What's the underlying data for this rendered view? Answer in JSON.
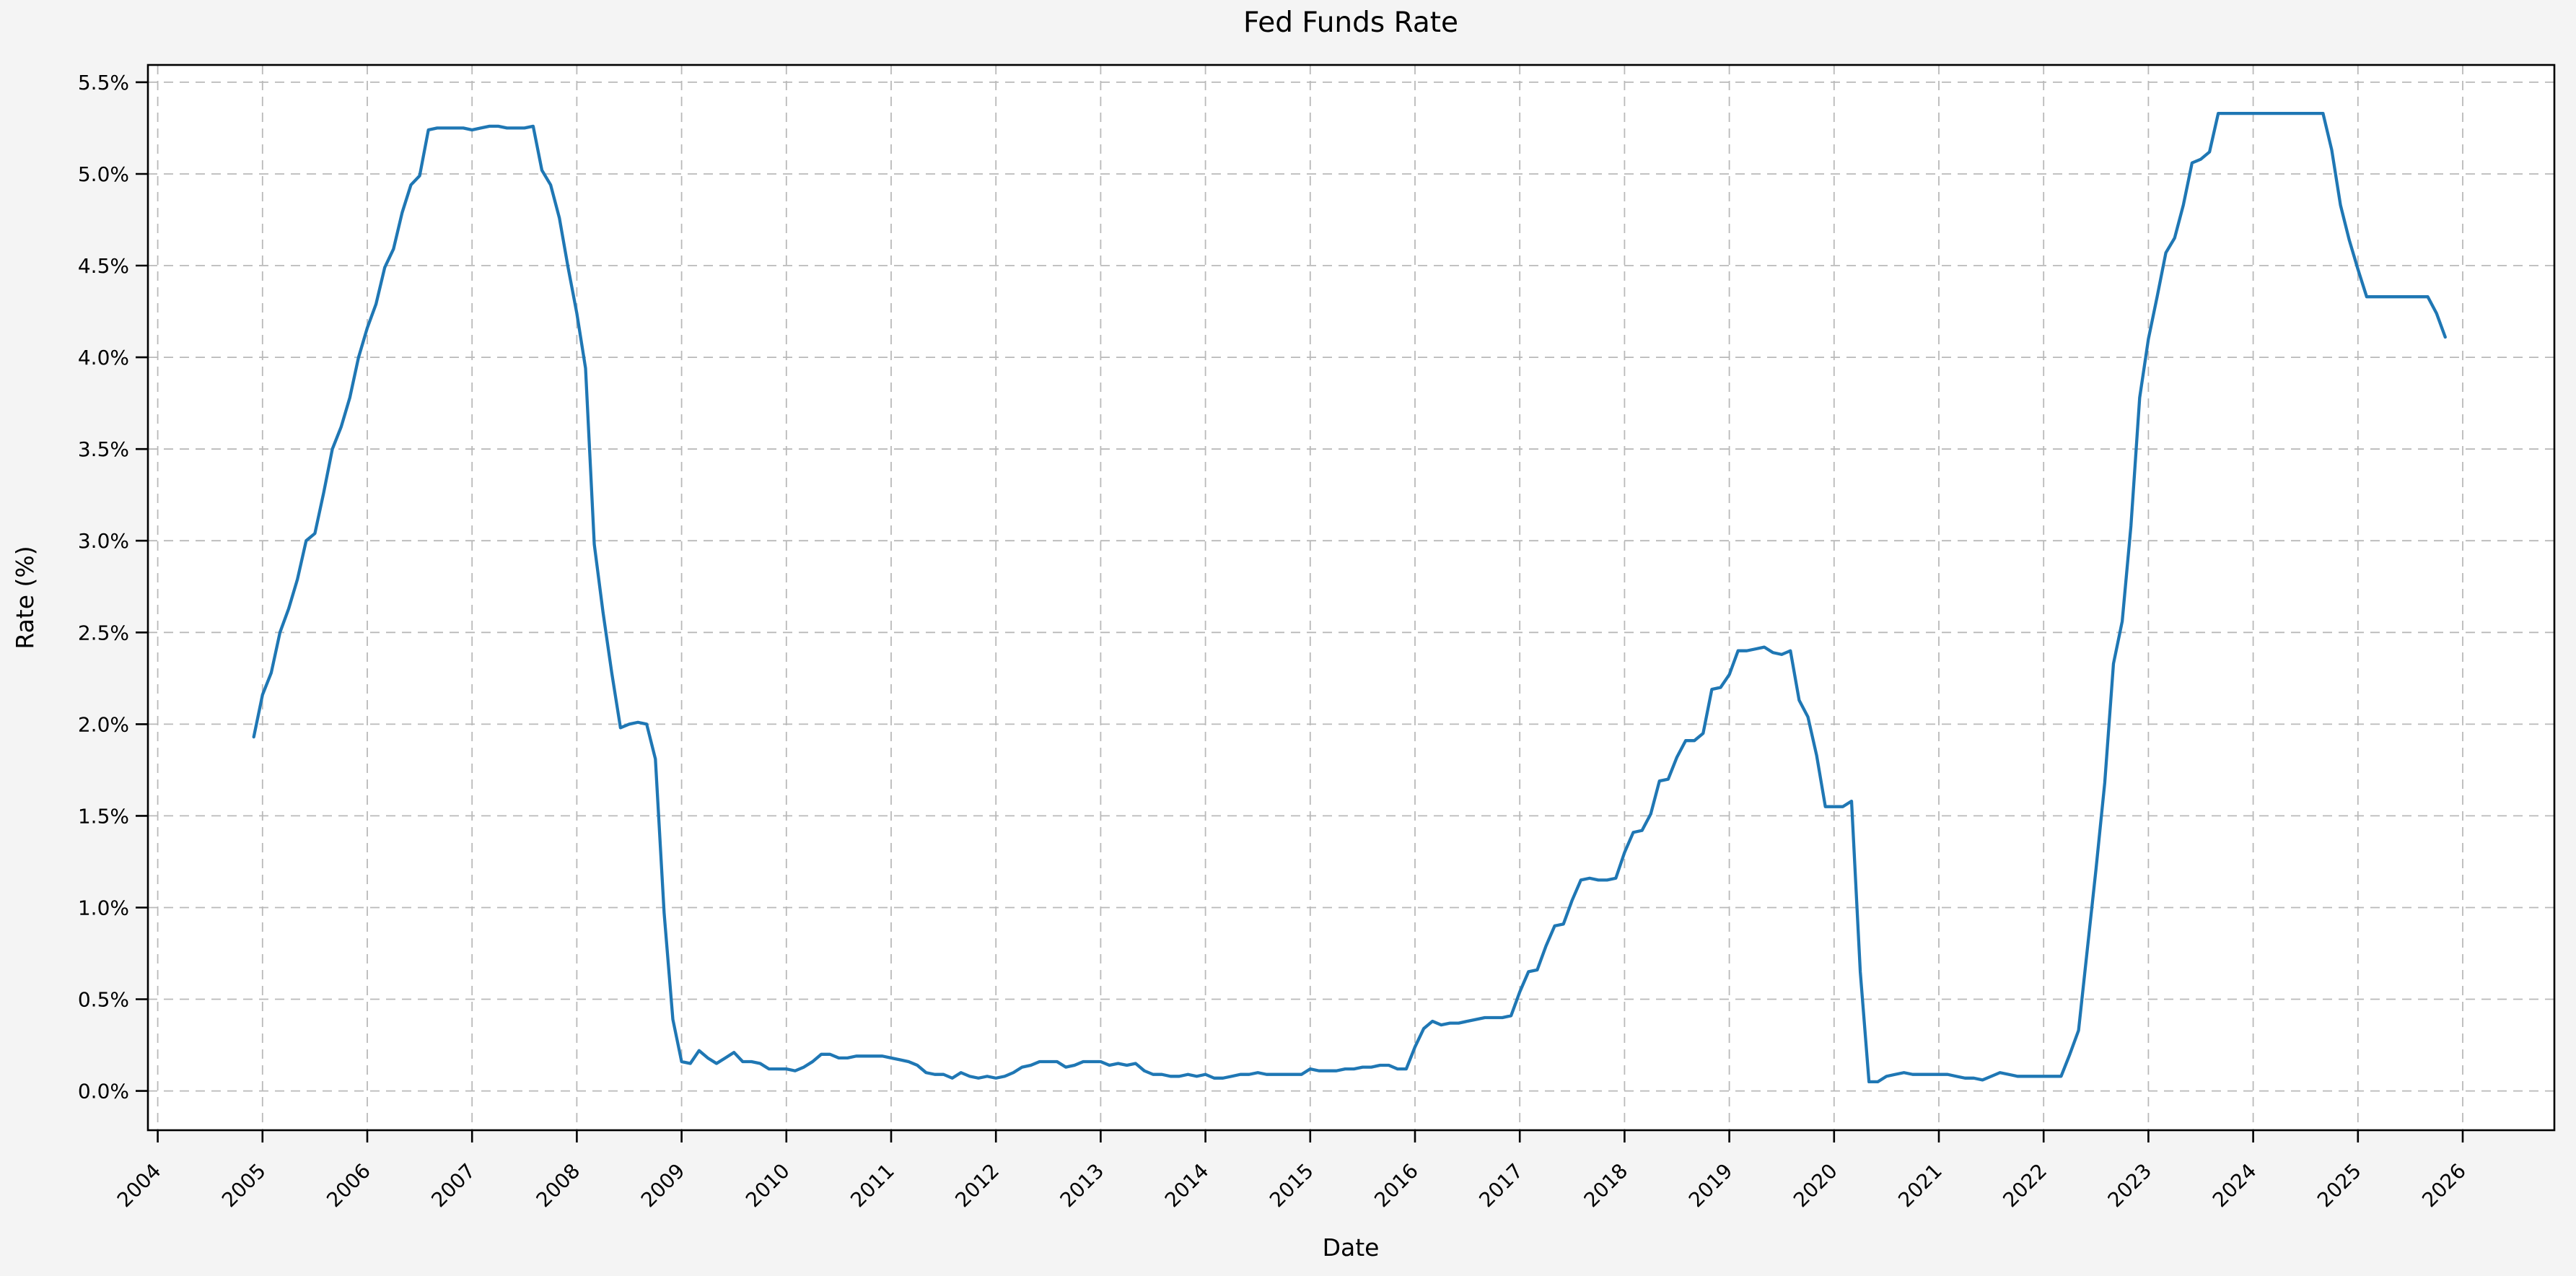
{
  "figure": {
    "title": "Fed Funds Rate",
    "xlabel": "Date",
    "ylabel": "Rate (%)",
    "background_color": "#f4f4f4",
    "plot_background_color": "#ffffff",
    "spine_color": "#000000",
    "grid_color": "#b9b9b9",
    "line_color": "#1f77b4",
    "text_color": "#000000"
  },
  "chart_data": {
    "type": "line",
    "title": "Fed Funds Rate",
    "xlabel": "Date",
    "ylabel": "Rate (%)",
    "grid": true,
    "grid_style": "dashed",
    "legend_position": "none",
    "xlim_years": [
      2003.906,
      2026.875
    ],
    "ylim": [
      -0.214,
      5.594
    ],
    "x_ticks": [
      2004,
      2005,
      2006,
      2007,
      2008,
      2009,
      2010,
      2011,
      2012,
      2013,
      2014,
      2015,
      2016,
      2017,
      2018,
      2019,
      2020,
      2021,
      2022,
      2023,
      2024,
      2025,
      2026
    ],
    "y_ticks": [
      0.0,
      0.5,
      1.0,
      1.5,
      2.0,
      2.5,
      3.0,
      3.5,
      4.0,
      4.5,
      5.0,
      5.5
    ],
    "y_tick_labels": [
      "0.0%",
      "0.5%",
      "1.0%",
      "1.5%",
      "2.0%",
      "2.5%",
      "3.0%",
      "3.5%",
      "4.0%",
      "4.5%",
      "5.0%",
      "5.5%"
    ],
    "series": [
      {
        "name": "Fed Funds Rate",
        "color": "#1f77b4",
        "frequency": "monthly",
        "x_start_month": "2004-11",
        "x_end_month": "2025-10",
        "values": [
          1.93,
          2.16,
          2.28,
          2.5,
          2.63,
          2.79,
          3.0,
          3.04,
          3.26,
          3.5,
          3.62,
          3.78,
          4.0,
          4.16,
          4.29,
          4.49,
          4.59,
          4.79,
          4.94,
          4.99,
          5.24,
          5.25,
          5.25,
          5.25,
          5.25,
          5.24,
          5.25,
          5.26,
          5.26,
          5.25,
          5.25,
          5.25,
          5.26,
          5.02,
          4.94,
          4.76,
          4.49,
          4.24,
          3.94,
          2.98,
          2.61,
          2.28,
          1.98,
          2.0,
          2.01,
          2.0,
          1.81,
          0.97,
          0.39,
          0.16,
          0.15,
          0.22,
          0.18,
          0.15,
          0.18,
          0.21,
          0.16,
          0.16,
          0.15,
          0.12,
          0.12,
          0.12,
          0.11,
          0.13,
          0.16,
          0.2,
          0.2,
          0.18,
          0.18,
          0.19,
          0.19,
          0.19,
          0.19,
          0.18,
          0.17,
          0.16,
          0.14,
          0.1,
          0.09,
          0.09,
          0.07,
          0.1,
          0.08,
          0.07,
          0.08,
          0.07,
          0.08,
          0.1,
          0.13,
          0.14,
          0.16,
          0.16,
          0.16,
          0.13,
          0.14,
          0.16,
          0.16,
          0.16,
          0.14,
          0.15,
          0.14,
          0.15,
          0.11,
          0.09,
          0.09,
          0.08,
          0.08,
          0.09,
          0.08,
          0.09,
          0.07,
          0.07,
          0.08,
          0.09,
          0.09,
          0.1,
          0.09,
          0.09,
          0.09,
          0.09,
          0.09,
          0.12,
          0.11,
          0.11,
          0.11,
          0.12,
          0.12,
          0.13,
          0.13,
          0.14,
          0.14,
          0.12,
          0.12,
          0.24,
          0.34,
          0.38,
          0.36,
          0.37,
          0.37,
          0.38,
          0.39,
          0.4,
          0.4,
          0.4,
          0.41,
          0.54,
          0.65,
          0.66,
          0.79,
          0.9,
          0.91,
          1.04,
          1.15,
          1.16,
          1.15,
          1.15,
          1.16,
          1.3,
          1.41,
          1.42,
          1.51,
          1.69,
          1.7,
          1.82,
          1.91,
          1.91,
          1.95,
          2.19,
          2.2,
          2.27,
          2.4,
          2.4,
          2.41,
          2.42,
          2.39,
          2.38,
          2.4,
          2.13,
          2.04,
          1.83,
          1.55,
          1.55,
          1.55,
          1.58,
          0.65,
          0.05,
          0.05,
          0.08,
          0.09,
          0.1,
          0.09,
          0.09,
          0.09,
          0.09,
          0.09,
          0.08,
          0.07,
          0.07,
          0.06,
          0.08,
          0.1,
          0.09,
          0.08,
          0.08,
          0.08,
          0.08,
          0.08,
          0.08,
          0.2,
          0.33,
          0.77,
          1.21,
          1.68,
          2.33,
          2.56,
          3.08,
          3.78,
          4.1,
          4.33,
          4.57,
          4.65,
          4.83,
          5.06,
          5.08,
          5.12,
          5.33,
          5.33,
          5.33,
          5.33,
          5.33,
          5.33,
          5.33,
          5.33,
          5.33,
          5.33,
          5.33,
          5.33,
          5.33,
          5.13,
          4.83,
          4.64,
          4.48,
          4.33,
          4.33,
          4.33,
          4.33,
          4.33,
          4.33,
          4.33,
          4.33,
          4.24,
          4.11
        ]
      }
    ]
  }
}
